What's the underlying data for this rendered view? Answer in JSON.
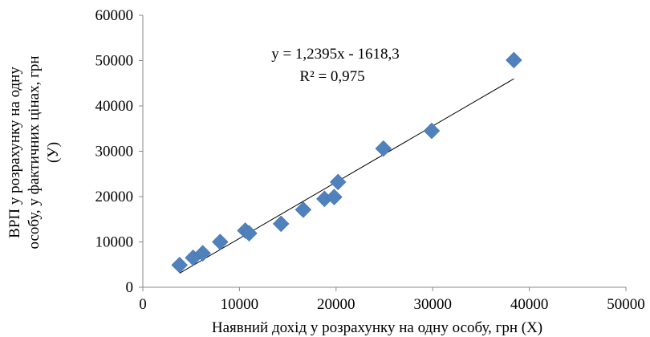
{
  "chart_data": {
    "type": "scatter",
    "title": "",
    "xlabel": "Наявний дохід у розрахунку на одну особу, грн (X)",
    "ylabel_lines": [
      "ВРП у розрахунку на одну",
      "особу, у фактичних цінах, грн",
      "(У)"
    ],
    "xlim": [
      0,
      50000
    ],
    "ylim": [
      0,
      60000
    ],
    "x_ticks": [
      "0",
      "10000",
      "20000",
      "30000",
      "40000",
      "50000"
    ],
    "y_ticks": [
      "0",
      "10000",
      "20000",
      "30000",
      "40000",
      "50000",
      "60000"
    ],
    "grid": false,
    "legend": "none",
    "marker_color": "#4f81bd",
    "trendline_color": "#000000",
    "points": [
      {
        "x": 3800,
        "y": 4900
      },
      {
        "x": 5200,
        "y": 6500
      },
      {
        "x": 6200,
        "y": 7500
      },
      {
        "x": 8000,
        "y": 10000
      },
      {
        "x": 10600,
        "y": 12500
      },
      {
        "x": 11000,
        "y": 11900
      },
      {
        "x": 14300,
        "y": 14000
      },
      {
        "x": 16600,
        "y": 17100
      },
      {
        "x": 18800,
        "y": 19500
      },
      {
        "x": 19800,
        "y": 19900
      },
      {
        "x": 20200,
        "y": 23200
      },
      {
        "x": 24900,
        "y": 30600
      },
      {
        "x": 29900,
        "y": 34500
      },
      {
        "x": 38400,
        "y": 50100
      }
    ],
    "trendline": {
      "slope": 1.2395,
      "intercept": -1618.3,
      "x_start": 3800,
      "x_end": 38400
    },
    "equation_text": "y = 1,2395x - 1618,3",
    "r2_text": "R² = 0,975"
  }
}
